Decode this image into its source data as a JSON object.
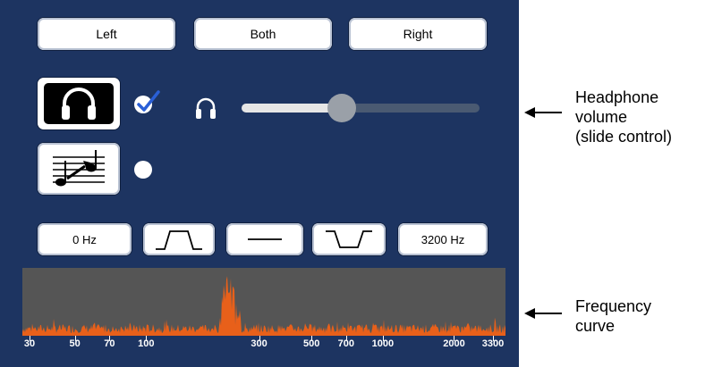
{
  "top_buttons": {
    "left_label": "Left",
    "both_label": "Both",
    "right_label": "Right"
  },
  "volume": {
    "value": 0.42
  },
  "options": {
    "headphone_checked": true,
    "music_checked": false
  },
  "freq_row": {
    "min_label": "0 Hz",
    "max_label": "3200 Hz"
  },
  "graph": {
    "ticks": [
      "30",
      "50",
      "70",
      "100",
      "300",
      "500",
      "700",
      "1000",
      "2000",
      "3300"
    ]
  },
  "annotations": {
    "volume_line1": "Headphone",
    "volume_line2": "volume",
    "volume_line3": "(slide control)",
    "freq_line1": "Frequency",
    "freq_line2": "curve"
  },
  "colors": {
    "panel": "#1d3461",
    "curve": "#e8601a",
    "graph_bg": "#555555",
    "check": "#2a5fd6"
  }
}
